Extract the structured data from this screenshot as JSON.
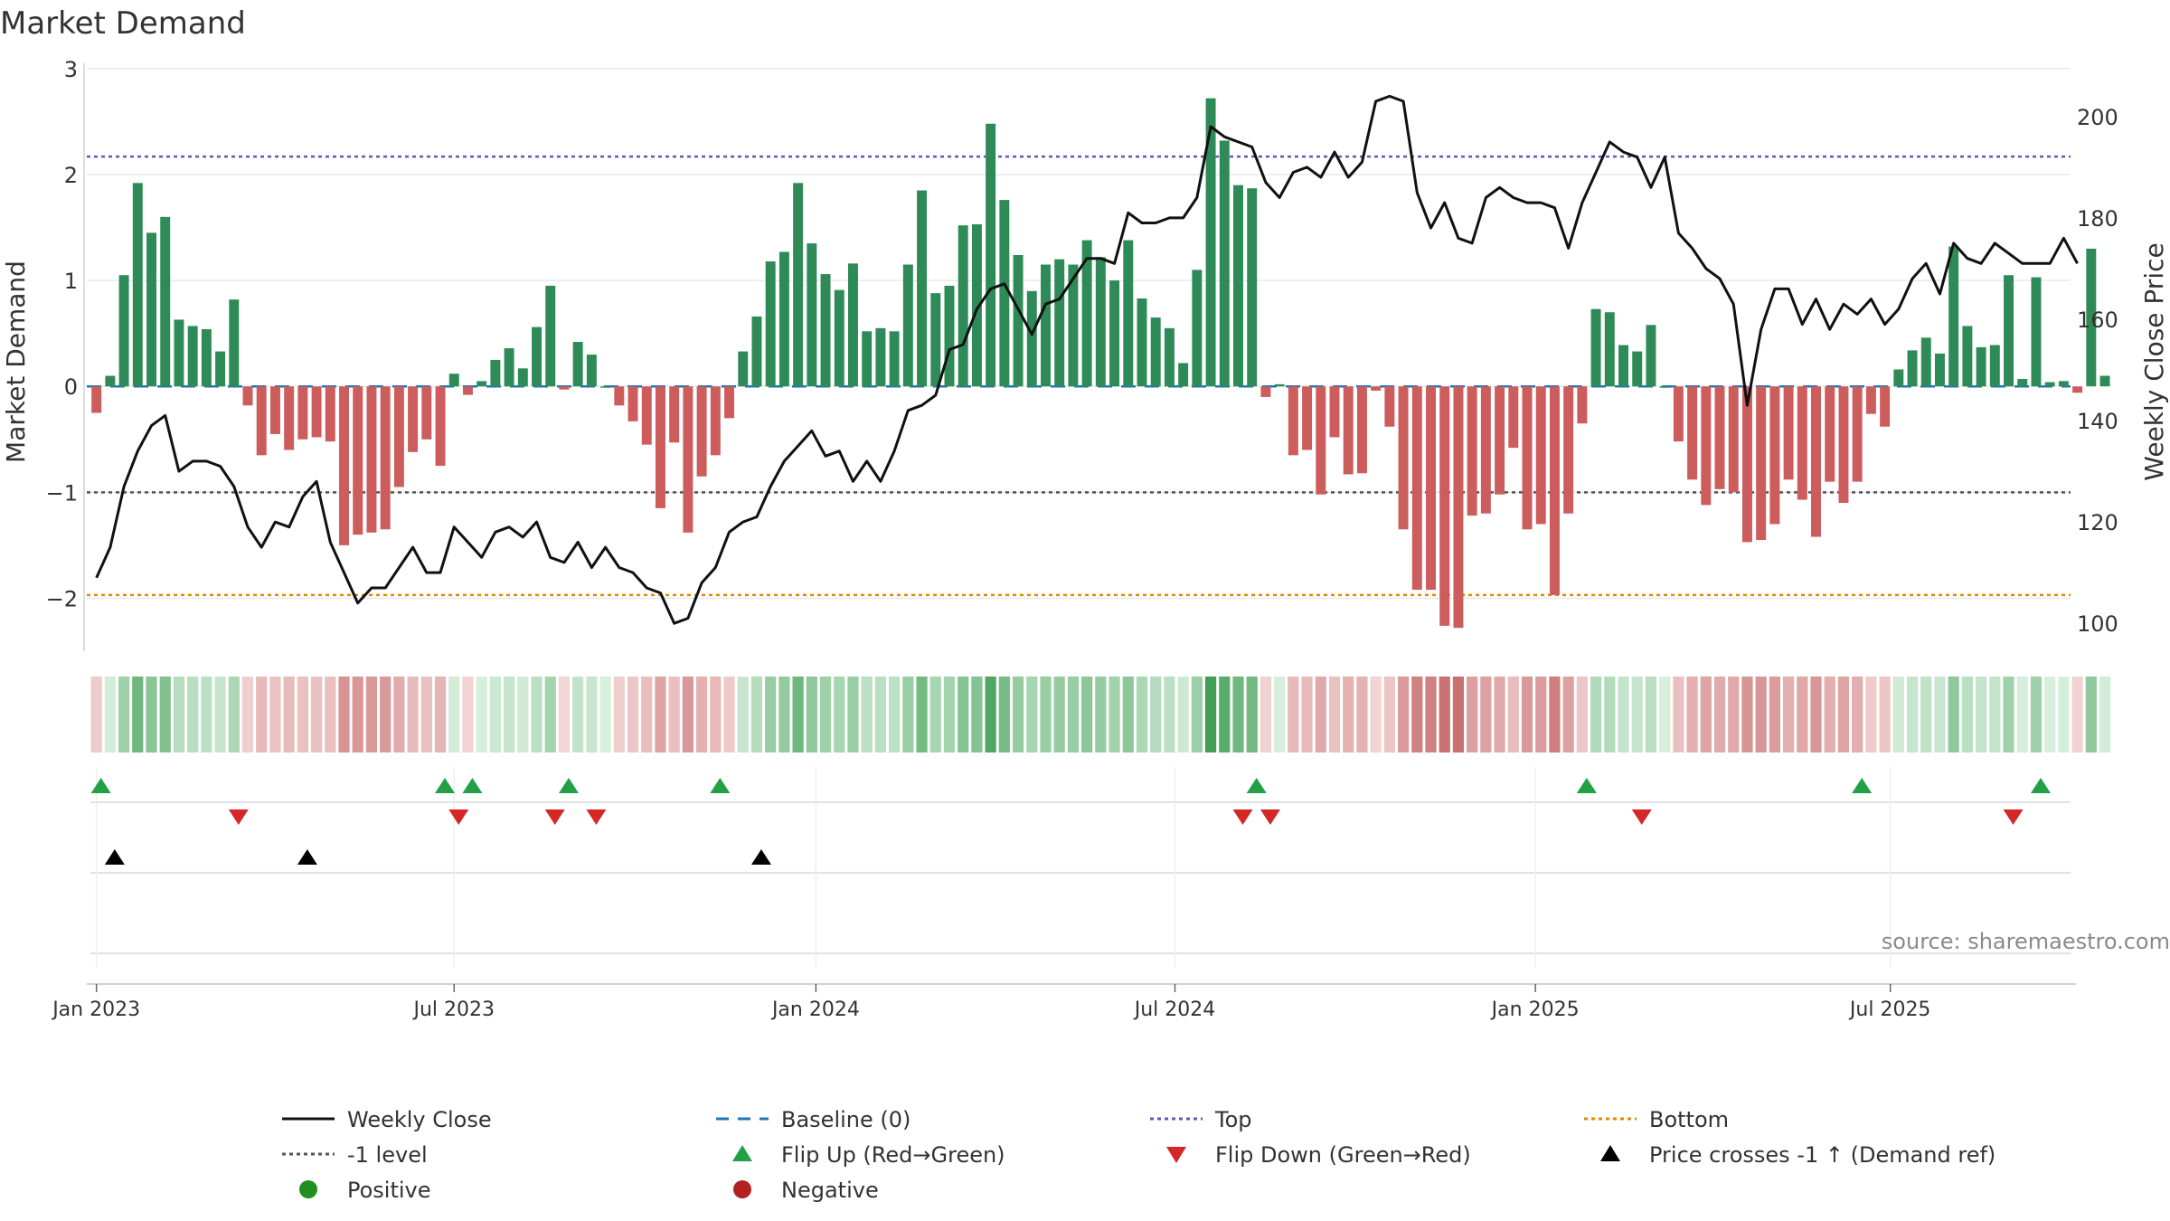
{
  "colors": {
    "positive_bar": "#2e8b57",
    "negative_bar": "#cd5c5c",
    "close_line": "#111111",
    "baseline": "#1f77b4",
    "top_line": "#5b5bbf",
    "minus1_line": "#555555",
    "bottom_line": "#e08a00",
    "flip_up": "#22a045",
    "flip_down": "#d62728",
    "cross": "#000000",
    "legend_positive": "#1f8f1f",
    "legend_negative": "#b22222"
  },
  "chart_data": {
    "type": "bar",
    "title": "Market Demand",
    "ylabel_left": "Market Demand",
    "ylabel_right": "Weekly Close Price",
    "ylim_left": [
      -2.5,
      3.05
    ],
    "ylim_right": [
      94.5,
      210.5
    ],
    "yticks_left": [
      3,
      2,
      1,
      0,
      -1,
      -2
    ],
    "yticks_left_labels": [
      "3",
      "2",
      "1",
      "0",
      "−1",
      "−2"
    ],
    "yticks_right": [
      200,
      180,
      160,
      140,
      120,
      100
    ],
    "yticks_right_labels": [
      "200",
      "180",
      "160",
      "140",
      "120",
      "100"
    ],
    "x_range_weeks": [
      -0.7,
      143.5
    ],
    "xticks_weeks": [
      0,
      26,
      52.3,
      78.4,
      104.6,
      130.4
    ],
    "xtick_labels": [
      "Jan 2023",
      "Jul 2023",
      "Jan 2024",
      "Jul 2024",
      "Jan 2025",
      "Jul 2025"
    ],
    "reference_levels": {
      "top": 2.17,
      "minus_one": -1.0,
      "bottom": -1.97,
      "baseline": 0.0
    },
    "demand": [
      -0.25,
      0.1,
      1.05,
      1.92,
      1.45,
      1.6,
      0.63,
      0.57,
      0.54,
      0.33,
      0.82,
      -0.18,
      -0.65,
      -0.45,
      -0.6,
      -0.5,
      -0.48,
      -0.52,
      -1.5,
      -1.4,
      -1.38,
      -1.35,
      -0.95,
      -0.62,
      -0.5,
      -0.75,
      0.12,
      -0.08,
      0.05,
      0.25,
      0.36,
      0.17,
      0.56,
      0.95,
      -0.03,
      0.42,
      0.3,
      0.0,
      -0.18,
      -0.33,
      -0.55,
      -1.15,
      -0.53,
      -1.38,
      -0.85,
      -0.65,
      -0.3,
      0.33,
      0.66,
      1.18,
      1.27,
      1.92,
      1.35,
      1.06,
      0.91,
      1.16,
      0.52,
      0.55,
      0.52,
      1.15,
      1.85,
      0.88,
      0.95,
      1.52,
      1.53,
      2.48,
      1.76,
      1.24,
      0.9,
      1.15,
      1.2,
      1.15,
      1.38,
      1.22,
      1.0,
      1.38,
      0.83,
      0.65,
      0.55,
      0.22,
      1.1,
      2.72,
      2.32,
      1.9,
      1.87,
      -0.1,
      0.02,
      -0.65,
      -0.6,
      -1.02,
      -0.48,
      -0.83,
      -0.82,
      -0.04,
      -0.38,
      -1.35,
      -1.92,
      -1.92,
      -2.26,
      -2.28,
      -1.22,
      -1.2,
      -1.02,
      -0.58,
      -1.35,
      -1.3,
      -1.97,
      -1.2,
      -0.35,
      0.73,
      0.7,
      0.39,
      0.33,
      0.58,
      0.0,
      -0.52,
      -0.88,
      -1.12,
      -0.97,
      -1.0,
      -1.47,
      -1.45,
      -1.3,
      -0.88,
      -1.07,
      -1.42,
      -0.9,
      -1.1,
      -0.9,
      -0.26,
      -0.38,
      0.16,
      0.34,
      0.46,
      0.31,
      1.32,
      0.57,
      0.37,
      0.39,
      1.05,
      0.07,
      1.03,
      0.04,
      0.05,
      -0.06,
      1.3,
      0.1
    ],
    "close": [
      109,
      115,
      127,
      134,
      139,
      141,
      130,
      132,
      132,
      131,
      127,
      119,
      115,
      120,
      119,
      125,
      128,
      116,
      110,
      104,
      107,
      107,
      111,
      115,
      110,
      110,
      119,
      116,
      113,
      118,
      119,
      117,
      120,
      113,
      112,
      116,
      111,
      115,
      111,
      110,
      107,
      106,
      100,
      101,
      108,
      111,
      118,
      120,
      121,
      127,
      132,
      135,
      138,
      133,
      134,
      128,
      132,
      128,
      134,
      142,
      143,
      145,
      154,
      155,
      162,
      166,
      167,
      162,
      157,
      163,
      164,
      168,
      172,
      172,
      171,
      181,
      179,
      179,
      180,
      180,
      184,
      198,
      196,
      195,
      194,
      187,
      184,
      189,
      190,
      188,
      193,
      188,
      191,
      203,
      204,
      203,
      185,
      178,
      183,
      176,
      175,
      184,
      186,
      184,
      183,
      183,
      182,
      174,
      183,
      189,
      195,
      193,
      192,
      186,
      192,
      177,
      174,
      170,
      168,
      163,
      143,
      158,
      166,
      166,
      159,
      164,
      158,
      163,
      161,
      164,
      159,
      162,
      168,
      171,
      165,
      175,
      172,
      171,
      175,
      173,
      171,
      171,
      171,
      176,
      171
    ],
    "flip_up_weeks": [
      0,
      25,
      27,
      34,
      45,
      84,
      108,
      128,
      141
    ],
    "flip_down_weeks": [
      10,
      26,
      33,
      36,
      83,
      85,
      112,
      139
    ],
    "cross_weeks": [
      1,
      15,
      48
    ],
    "source_note": "source: sharemaestro.com",
    "legend": [
      {
        "label": "Weekly Close",
        "kind": "line"
      },
      {
        "label": "Baseline (0)",
        "kind": "dash"
      },
      {
        "label": "Top",
        "kind": "dot"
      },
      {
        "label": "Bottom",
        "kind": "dot-orange"
      },
      {
        "label": "-1 level",
        "kind": "dot-gray"
      },
      {
        "label": "Flip Up (Red→Green)",
        "kind": "tri-up-green"
      },
      {
        "label": "Flip Down (Green→Red)",
        "kind": "tri-down-red"
      },
      {
        "label": "Price crosses -1 ↑ (Demand ref)",
        "kind": "tri-up-black"
      },
      {
        "label": "Positive",
        "kind": "dot-green"
      },
      {
        "label": "Negative",
        "kind": "dot-red"
      }
    ]
  }
}
